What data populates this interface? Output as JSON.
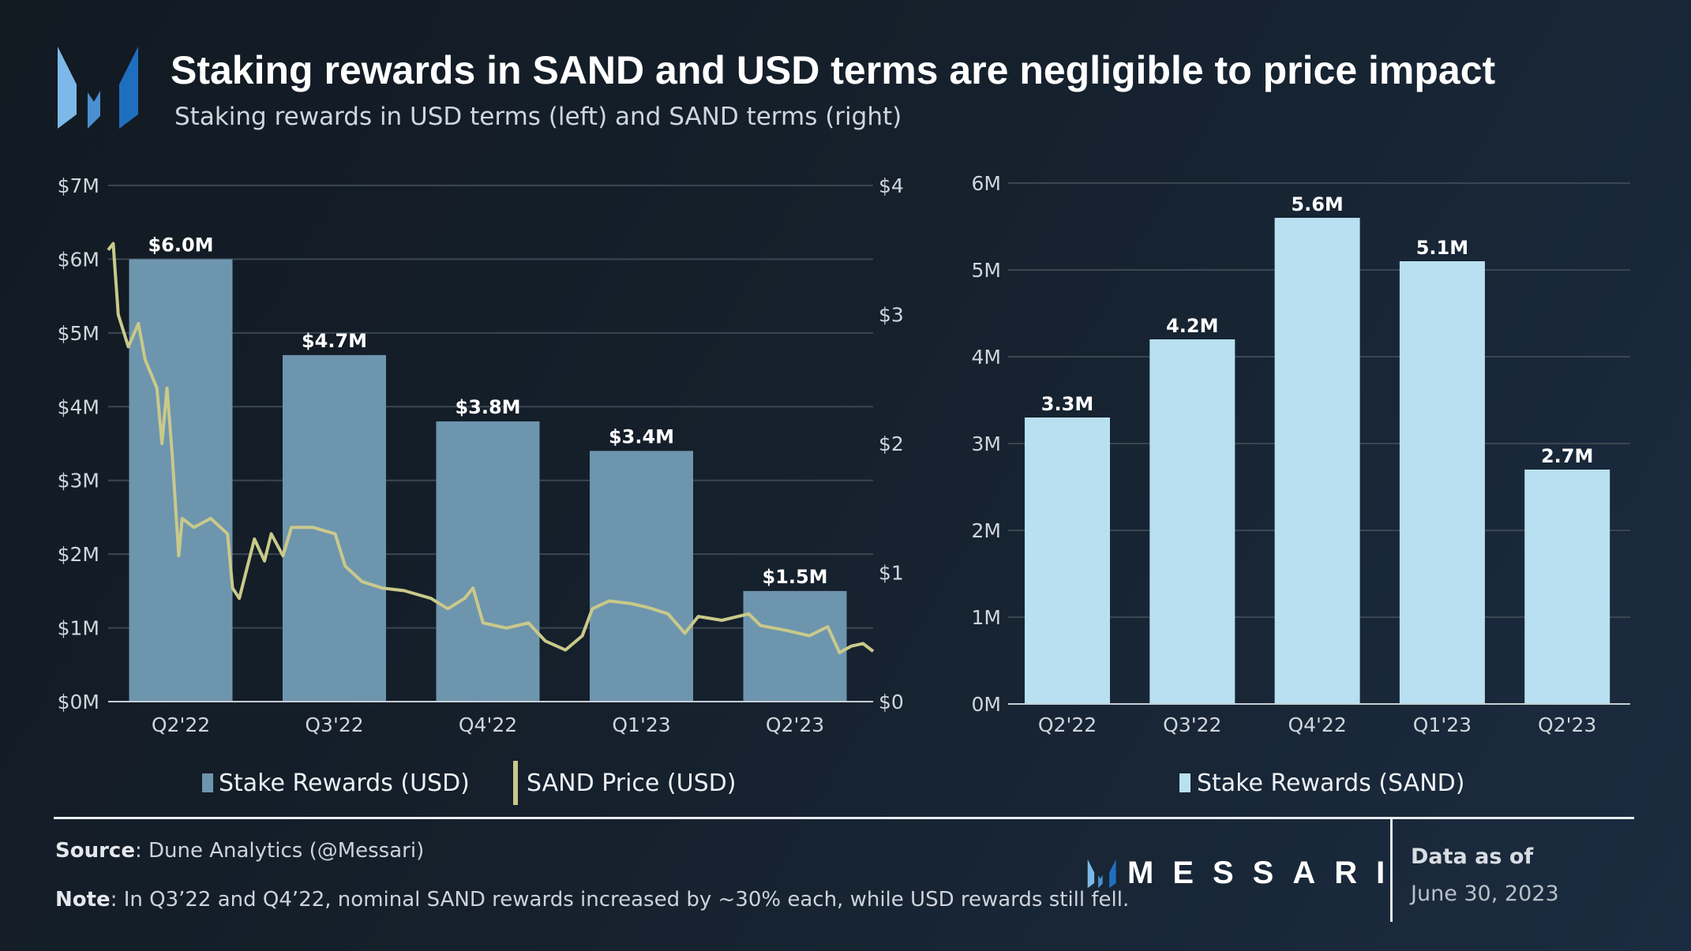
{
  "header": {
    "title": "Staking rewards in SAND and USD terms are negligible to price impact",
    "subtitle": "Staking rewards in USD terms (left) and SAND terms (right)"
  },
  "colors": {
    "usd_bar": "#6e95ae",
    "sand_price": "#c9c98a",
    "sand_bar": "#b9e0f1",
    "logo_light": "#7cb9e8",
    "logo_mid": "#4a90d0",
    "logo_dark": "#1f6fbf"
  },
  "chart_data": [
    {
      "type": "bar+line",
      "categories": [
        "Q2'22",
        "Q3'22",
        "Q4'22",
        "Q1'23",
        "Q2'23"
      ],
      "y_left": {
        "ticks": [
          "$0M",
          "$1M",
          "$2M",
          "$3M",
          "$4M",
          "$5M",
          "$6M",
          "$7M"
        ],
        "range": [
          0,
          7000000
        ]
      },
      "y_right": {
        "ticks": [
          "$0",
          "$1",
          "$2",
          "$3",
          "$4"
        ],
        "range": [
          0,
          4
        ]
      },
      "grid": true,
      "legend_placement": "bottom",
      "series": [
        {
          "name": "Stake Rewards (USD)",
          "type": "bar",
          "axis": "left",
          "values": [
            6000000,
            4700000,
            3800000,
            3400000,
            1500000
          ],
          "labels": [
            "$6.0M",
            "$4.7M",
            "$3.8M",
            "$3.4M",
            "$1.5M"
          ]
        },
        {
          "name": "SAND Price (USD)",
          "type": "line",
          "axis": "right",
          "x_range": [
            "2022-04-01",
            "2023-06-30"
          ],
          "points": [
            [
              "2022-04-01",
              3.5
            ],
            [
              "2022-04-04",
              3.55
            ],
            [
              "2022-04-07",
              3.0
            ],
            [
              "2022-04-13",
              2.75
            ],
            [
              "2022-04-19",
              2.93
            ],
            [
              "2022-04-23",
              2.65
            ],
            [
              "2022-04-30",
              2.43
            ],
            [
              "2022-05-03",
              2.0
            ],
            [
              "2022-05-06",
              2.43
            ],
            [
              "2022-05-09",
              1.93
            ],
            [
              "2022-05-13",
              1.13
            ],
            [
              "2022-05-15",
              1.42
            ],
            [
              "2022-05-22",
              1.35
            ],
            [
              "2022-06-01",
              1.42
            ],
            [
              "2022-06-11",
              1.3
            ],
            [
              "2022-06-14",
              0.88
            ],
            [
              "2022-06-18",
              0.8
            ],
            [
              "2022-06-27",
              1.26
            ],
            [
              "2022-07-03",
              1.09
            ],
            [
              "2022-07-07",
              1.3
            ],
            [
              "2022-07-14",
              1.13
            ],
            [
              "2022-07-19",
              1.35
            ],
            [
              "2022-08-01",
              1.35
            ],
            [
              "2022-08-14",
              1.3
            ],
            [
              "2022-08-20",
              1.05
            ],
            [
              "2022-08-30",
              0.93
            ],
            [
              "2022-09-11",
              0.88
            ],
            [
              "2022-09-24",
              0.86
            ],
            [
              "2022-10-10",
              0.8
            ],
            [
              "2022-10-20",
              0.72
            ],
            [
              "2022-10-30",
              0.8
            ],
            [
              "2022-11-04",
              0.88
            ],
            [
              "2022-11-10",
              0.61
            ],
            [
              "2022-11-24",
              0.57
            ],
            [
              "2022-12-07",
              0.61
            ],
            [
              "2022-12-17",
              0.47
            ],
            [
              "2022-12-29",
              0.4
            ],
            [
              "2023-01-08",
              0.51
            ],
            [
              "2023-01-14",
              0.72
            ],
            [
              "2023-01-24",
              0.78
            ],
            [
              "2023-02-06",
              0.76
            ],
            [
              "2023-02-16",
              0.73
            ],
            [
              "2023-02-28",
              0.68
            ],
            [
              "2023-03-10",
              0.53
            ],
            [
              "2023-03-18",
              0.66
            ],
            [
              "2023-04-01",
              0.63
            ],
            [
              "2023-04-17",
              0.68
            ],
            [
              "2023-04-24",
              0.59
            ],
            [
              "2023-05-10",
              0.55
            ],
            [
              "2023-05-23",
              0.51
            ],
            [
              "2023-06-03",
              0.58
            ],
            [
              "2023-06-10",
              0.38
            ],
            [
              "2023-06-17",
              0.43
            ],
            [
              "2023-06-24",
              0.45
            ],
            [
              "2023-06-30",
              0.39
            ]
          ]
        }
      ]
    },
    {
      "type": "bar",
      "categories": [
        "Q2'22",
        "Q3'22",
        "Q4'22",
        "Q1'23",
        "Q2'23"
      ],
      "y": {
        "ticks": [
          "0M",
          "1M",
          "2M",
          "3M",
          "4M",
          "5M",
          "6M"
        ],
        "range": [
          0,
          6000000
        ]
      },
      "grid": true,
      "legend_placement": "bottom",
      "series": [
        {
          "name": "Stake Rewards (SAND)",
          "values": [
            3300000,
            4200000,
            5600000,
            5100000,
            2700000
          ],
          "labels": [
            "3.3M",
            "4.2M",
            "5.6M",
            "5.1M",
            "2.7M"
          ]
        }
      ]
    }
  ],
  "footer": {
    "source_label": "Source",
    "source_text": ": Dune Analytics (@Messari)",
    "note_label": "Note",
    "note_text": ": In Q3’22 and Q4’22, nominal SAND rewards increased by ~30% each, while USD rewards still fell.",
    "brand": "MESSARI",
    "data_as_of_label": "Data as of",
    "data_as_of_date": "June 30, 2023"
  }
}
